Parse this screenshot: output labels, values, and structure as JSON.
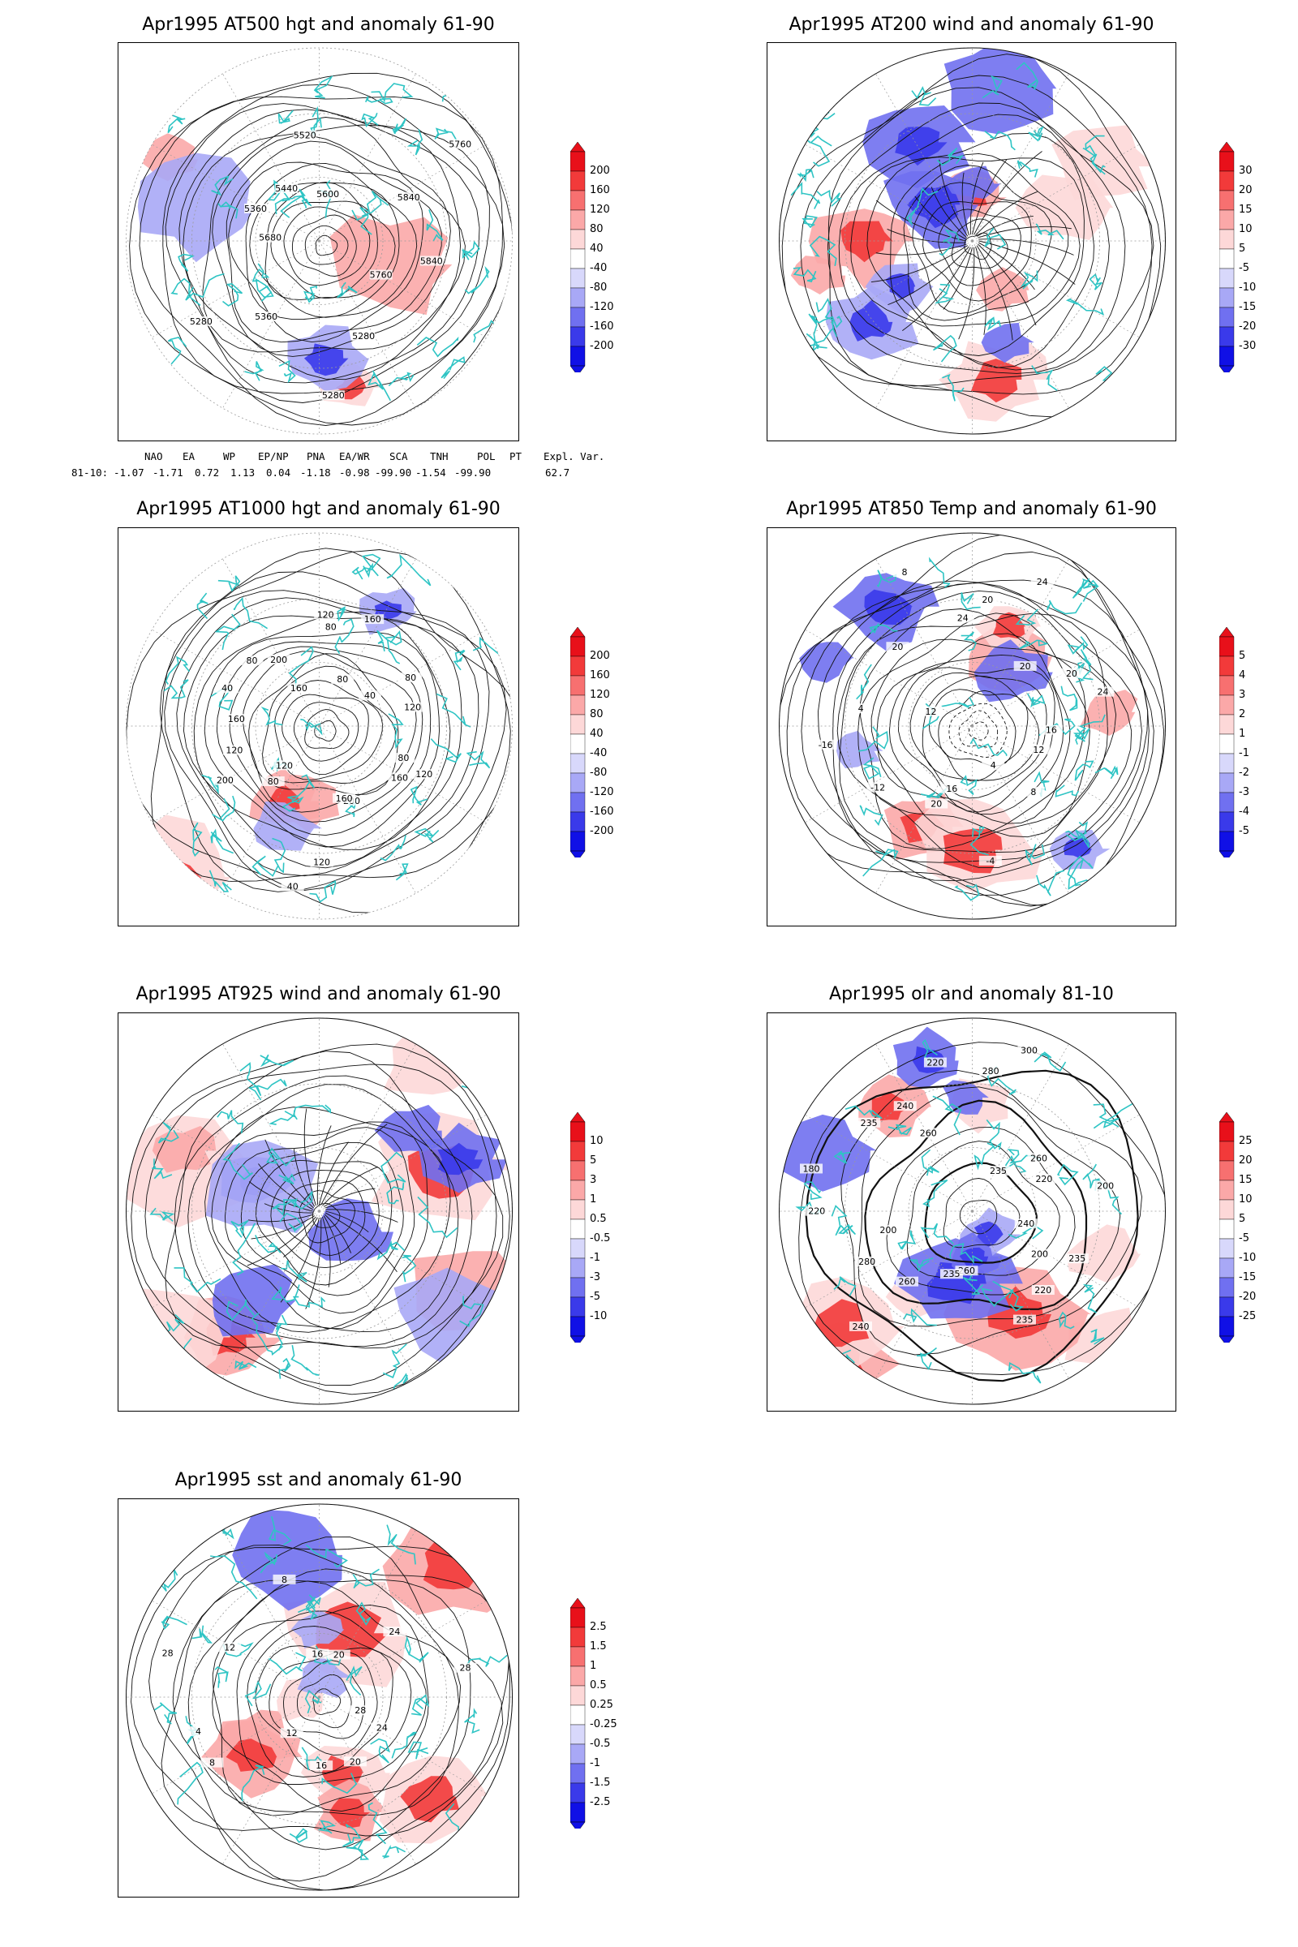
{
  "panels": [
    {
      "id": "p1",
      "title": "Apr1995 AT500 hgt and anomaly 61-90",
      "type": "height",
      "contour_labels": [
        "5840",
        "5760",
        "5280",
        "5280",
        "5360",
        "5280",
        "5680",
        "5360",
        "5440",
        "5520",
        "5600",
        "5760",
        "5840"
      ],
      "colorbar": [
        "200",
        "160",
        "120",
        "80",
        "40",
        "-40",
        "-80",
        "-120",
        "-160",
        "-200"
      ]
    },
    {
      "id": "p2",
      "title": "Apr1995 AT200 wind and anomaly 61-90",
      "type": "wind",
      "contour_labels": [],
      "colorbar": [
        "30",
        "20",
        "15",
        "10",
        "5",
        "-5",
        "-10",
        "-15",
        "-20",
        "-30"
      ]
    },
    {
      "id": "p3",
      "title": "Apr1995 AT1000 hgt and anomaly 61-90",
      "type": "height",
      "contour_labels": [
        "80",
        "120",
        "160",
        "200",
        "160",
        "120",
        "40",
        "120",
        "80",
        "200",
        "120",
        "160",
        "40",
        "80",
        "200",
        "160",
        "120",
        "80",
        "160",
        "80",
        "40",
        "80",
        "120"
      ],
      "colorbar": [
        "200",
        "160",
        "120",
        "80",
        "40",
        "-40",
        "-80",
        "-120",
        "-160",
        "-200"
      ]
    },
    {
      "id": "p4",
      "title": "Apr1995 AT850 Temp and anomaly 61-90",
      "type": "temp",
      "contour_labels": [
        "16",
        "12",
        "8",
        "4",
        "-4",
        "16",
        "20",
        "-12",
        "-16",
        "4",
        "12",
        "20",
        "8",
        "24",
        "20",
        "24",
        "20",
        "20",
        "24"
      ],
      "colorbar": [
        "5",
        "4",
        "3",
        "2",
        "1",
        "-1",
        "-2",
        "-3",
        "-4",
        "-5"
      ]
    },
    {
      "id": "p5",
      "title": "Apr1995 AT925 wind and anomaly 61-90",
      "type": "wind",
      "contour_labels": [],
      "colorbar": [
        "10",
        "5",
        "3",
        "1",
        "0.5",
        "-0.5",
        "-1",
        "-3",
        "-5",
        "-10"
      ]
    },
    {
      "id": "p6",
      "title": "Apr1995 olr and anomaly 81-10",
      "type": "olr",
      "contour_labels": [
        "240",
        "235",
        "200",
        "220",
        "235",
        "260",
        "235",
        "260",
        "240",
        "280",
        "200",
        "220",
        "180",
        "235",
        "260",
        "240",
        "220",
        "280",
        "300",
        "235",
        "260",
        "220",
        "200"
      ],
      "colorbar": [
        "25",
        "20",
        "15",
        "10",
        "5",
        "-5",
        "-10",
        "-15",
        "-20",
        "-25"
      ]
    },
    {
      "id": "p7",
      "title": "Apr1995 sst and anomaly 61-90",
      "type": "sst",
      "contour_labels": [
        "28",
        "24",
        "20",
        "16",
        "12",
        "8",
        "4",
        "28",
        "12",
        "8",
        "16",
        "20",
        "24",
        "28"
      ],
      "colorbar": [
        "2.5",
        "1.5",
        "1",
        "0.5",
        "0.25",
        "-0.25",
        "-0.5",
        "-1",
        "-1.5",
        "-2.5"
      ]
    }
  ],
  "indices": {
    "headers": [
      "NAO",
      "EA",
      "WP",
      "EP/NP",
      "PNA",
      "EA/WR",
      "SCA",
      "TNH",
      "POL",
      "PT",
      "Expl. Var."
    ],
    "row_label": "81-10:",
    "values": [
      "-1.07",
      "-1.71",
      "0.72",
      "1.13",
      "0.04",
      "-1.18",
      "-0.98",
      "-99.90",
      "-1.54",
      "-99.90",
      "62.7"
    ]
  },
  "colors": {
    "coast": "#2ec4c4",
    "scale": [
      "#e8101a",
      "#f23a3a",
      "#f77070",
      "#fba8a8",
      "#fdd8d8",
      "#ffffff",
      "#d8d8fb",
      "#a8a8f6",
      "#7070f0",
      "#3a3aea",
      "#1010e6"
    ]
  }
}
